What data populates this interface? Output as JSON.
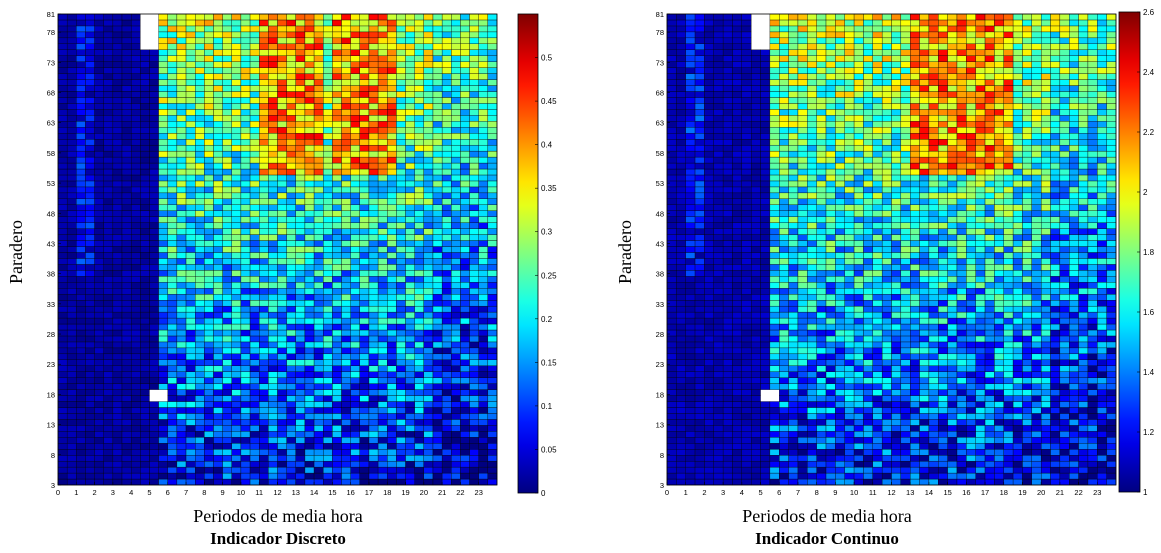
{
  "chart_data": [
    {
      "type": "heatmap",
      "title": "Indicador Discreto",
      "xlabel": "Periodos de media hora",
      "ylabel": "Paradero",
      "x_ticks": [
        "0",
        "1",
        "2",
        "3",
        "4",
        "5",
        "6",
        "7",
        "8",
        "9",
        "10",
        "11",
        "12",
        "13",
        "14",
        "15",
        "16",
        "17",
        "18",
        "19",
        "20",
        "21",
        "22",
        "23"
      ],
      "y_ticks": [
        "3",
        "8",
        "13",
        "18",
        "23",
        "28",
        "33",
        "38",
        "43",
        "48",
        "53",
        "58",
        "63",
        "68",
        "73",
        "78",
        "81"
      ],
      "xlim": [
        0,
        24
      ],
      "ylim": [
        3,
        81
      ],
      "colorbar": {
        "min": 0,
        "max": 0.55,
        "ticks": [
          "0",
          "0.05",
          "0.1",
          "0.15",
          "0.2",
          "0.25",
          "0.3",
          "0.35",
          "0.4",
          "0.45",
          "0.5"
        ],
        "colormap": "jet"
      },
      "pattern": {
        "night_period_end": 5.5,
        "night_value": 0.02,
        "peak_hours": [
          12,
          13,
          16,
          17
        ],
        "peak_value": 0.45,
        "high_stops": [
          55,
          81
        ],
        "gap_top": {
          "x": [
            4.5,
            5.5
          ],
          "y": [
            76,
            81
          ]
        },
        "gap_low": {
          "x": [
            5,
            6
          ],
          "y": [
            17,
            18
          ]
        }
      }
    },
    {
      "type": "heatmap",
      "title": "Indicador Continuo",
      "xlabel": "Periodos de media hora",
      "ylabel": "Paradero",
      "x_ticks": [
        "0",
        "1",
        "2",
        "3",
        "4",
        "5",
        "6",
        "7",
        "8",
        "9",
        "10",
        "11",
        "12",
        "13",
        "14",
        "15",
        "16",
        "17",
        "18",
        "19",
        "20",
        "21",
        "22",
        "23"
      ],
      "y_ticks": [
        "3",
        "8",
        "13",
        "18",
        "23",
        "28",
        "33",
        "38",
        "43",
        "48",
        "53",
        "58",
        "63",
        "68",
        "73",
        "78",
        "81"
      ],
      "xlim": [
        0,
        24
      ],
      "ylim": [
        3,
        81
      ],
      "colorbar": {
        "min": 1,
        "max": 2.6,
        "ticks": [
          "1",
          "1.2",
          "1.4",
          "1.6",
          "1.8",
          "2",
          "2.2",
          "2.4",
          "2.6"
        ],
        "colormap": "jet"
      },
      "pattern": {
        "night_period_end": 5.5,
        "night_value": 1.08,
        "peak_hours": [
          14,
          15,
          17
        ],
        "peak_value": 2.3,
        "high_stops": [
          55,
          81
        ],
        "gap_top": {
          "x": [
            4.5,
            5.5
          ],
          "y": [
            76,
            81
          ]
        },
        "gap_low": {
          "x": [
            5,
            6
          ],
          "y": [
            17,
            18
          ]
        }
      }
    }
  ]
}
